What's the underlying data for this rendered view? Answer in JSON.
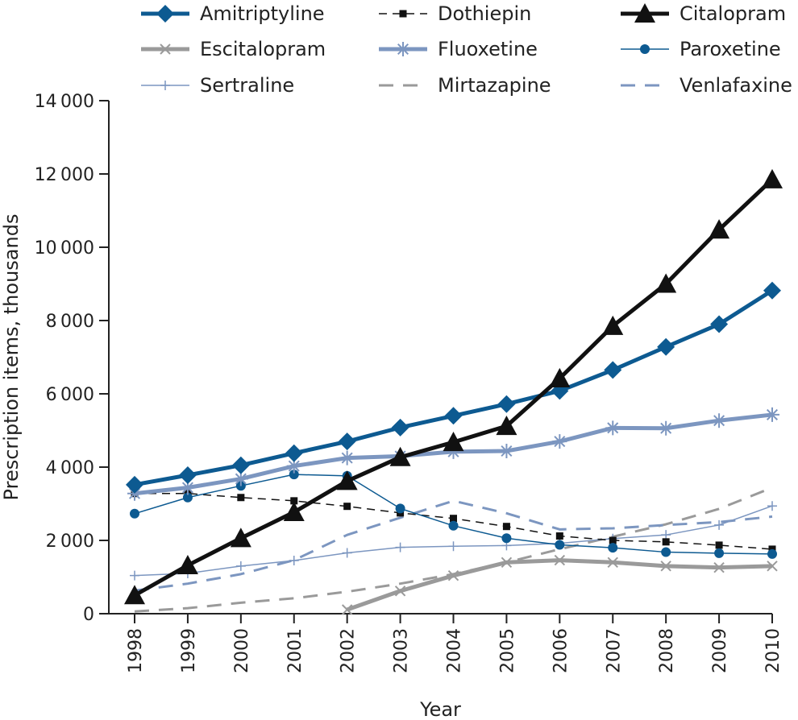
{
  "chart_data": {
    "type": "line",
    "title": "",
    "xlabel": "Year",
    "ylabel": "Prescription items, thousands",
    "x": [
      "1998",
      "1999",
      "2000",
      "2001",
      "2002",
      "2003",
      "2004",
      "2005",
      "2006",
      "2007",
      "2008",
      "2009",
      "2010"
    ],
    "ylim": [
      0,
      14000
    ],
    "yticks": [
      0,
      2000,
      4000,
      6000,
      8000,
      10000,
      12000,
      14000
    ],
    "ytick_labels": [
      "0",
      "2 000",
      "4 000",
      "6 000",
      "8 000",
      "10 000",
      "12 000",
      "14 000"
    ],
    "grid": false,
    "legend_position": "top",
    "series": [
      {
        "name": "Amitriptyline",
        "color": "#0d5a91",
        "marker": "diamond",
        "dash": "solid",
        "width": 5,
        "values": [
          3520,
          3780,
          4050,
          4380,
          4700,
          5080,
          5400,
          5720,
          6080,
          6650,
          7280,
          7900,
          8820
        ]
      },
      {
        "name": "Dothiepin",
        "color": "#111111",
        "marker": "square",
        "dash": "dashed",
        "width": 1.5,
        "values": [
          3280,
          3280,
          3170,
          3080,
          2930,
          2750,
          2600,
          2380,
          2120,
          2000,
          1960,
          1870,
          1760
        ]
      },
      {
        "name": "Citalopram",
        "color": "#111111",
        "marker": "triangle",
        "dash": "solid",
        "width": 5,
        "values": [
          500,
          1320,
          2060,
          2770,
          3620,
          4270,
          4680,
          5120,
          6420,
          7850,
          9000,
          10480,
          11850
        ]
      },
      {
        "name": "Escitalopram",
        "color": "#9a9a9a",
        "marker": "x",
        "dash": "solid",
        "width": 5,
        "values": [
          null,
          null,
          null,
          null,
          110,
          620,
          1040,
          1400,
          1460,
          1400,
          1300,
          1260,
          1300
        ]
      },
      {
        "name": "Fluoxetine",
        "color": "#7c96c0",
        "marker": "asterisk",
        "dash": "solid",
        "width": 5,
        "values": [
          3280,
          3440,
          3680,
          4030,
          4250,
          4300,
          4420,
          4440,
          4700,
          5070,
          5060,
          5270,
          5430
        ]
      },
      {
        "name": "Paroxetine",
        "color": "#0d5a91",
        "marker": "circle",
        "dash": "solid",
        "width": 1.5,
        "values": [
          2730,
          3170,
          3490,
          3800,
          3760,
          2870,
          2400,
          2060,
          1880,
          1800,
          1680,
          1650,
          1630
        ]
      },
      {
        "name": "Sertraline",
        "color": "#7c96c0",
        "marker": "plus",
        "dash": "solid",
        "width": 1.5,
        "values": [
          1040,
          1100,
          1300,
          1450,
          1660,
          1810,
          1840,
          1860,
          1920,
          2050,
          2150,
          2420,
          2940
        ]
      },
      {
        "name": "Mirtazapine",
        "color": "#9a9a9a",
        "marker": "none",
        "dash": "dashed",
        "width": 3,
        "values": [
          60,
          150,
          300,
          420,
          600,
          820,
          1080,
          1400,
          1760,
          2100,
          2440,
          2860,
          3440
        ]
      },
      {
        "name": "Venlafaxine",
        "color": "#7c96c0",
        "marker": "none",
        "dash": "dashed",
        "width": 3,
        "values": [
          630,
          820,
          1080,
          1460,
          2150,
          2620,
          3080,
          2740,
          2300,
          2330,
          2420,
          2500,
          2650
        ]
      }
    ]
  }
}
